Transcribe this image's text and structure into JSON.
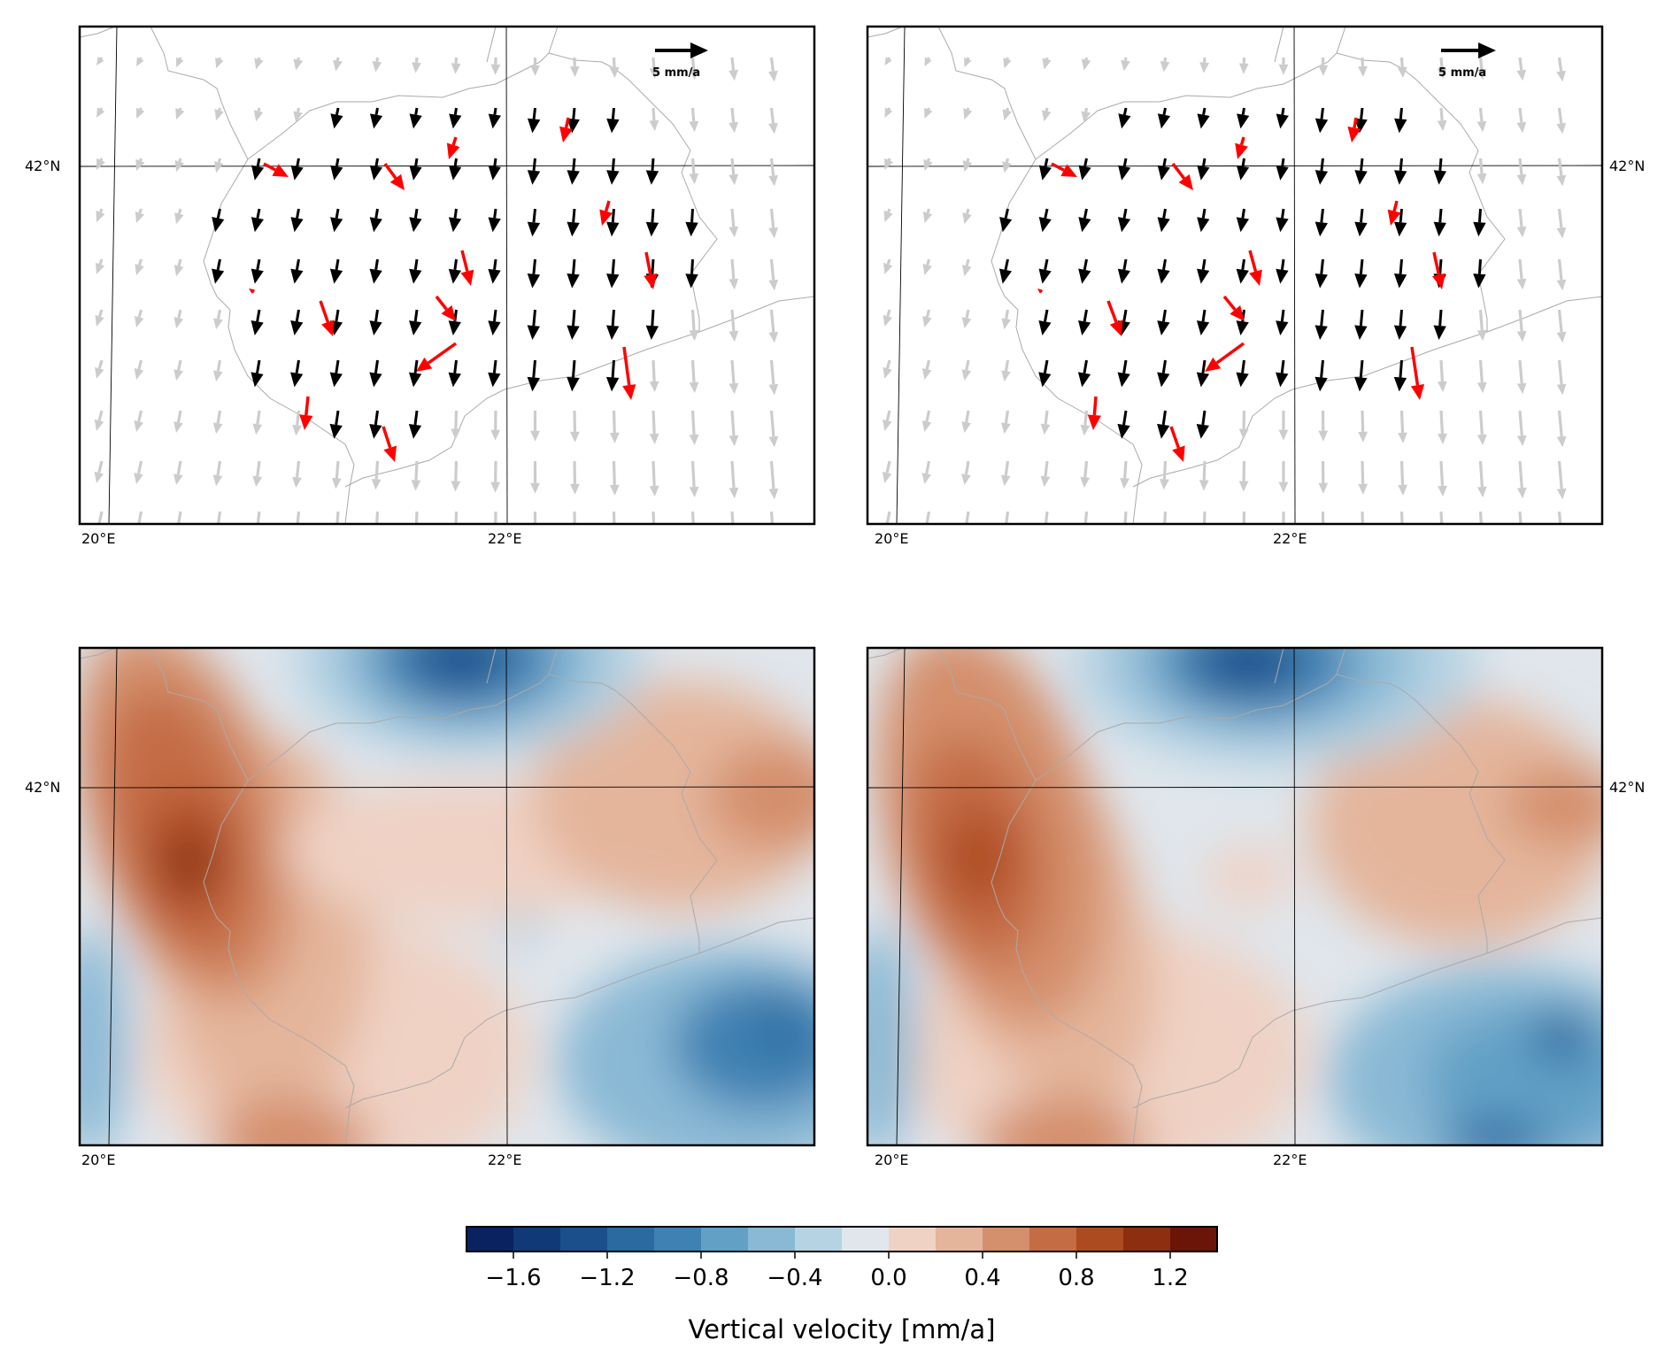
{
  "figure": {
    "panels": [
      {
        "id": "tl",
        "type": "velocity-vectors",
        "lat_label": "42°N",
        "lat_label_side": "left",
        "lon_labels": [
          "20°E",
          "22°E"
        ],
        "scale_label": "5 mm/a"
      },
      {
        "id": "tr",
        "type": "velocity-vectors",
        "lat_label": "42°N",
        "lat_label_side": "right",
        "lon_labels": [
          "20°E",
          "22°E"
        ],
        "scale_label": "5 mm/a"
      },
      {
        "id": "bl",
        "type": "vertical-velocity-contours",
        "lat_label": "42°N",
        "lat_label_side": "left",
        "lon_labels": [
          "20°E",
          "22°E"
        ]
      },
      {
        "id": "br",
        "type": "vertical-velocity-contours",
        "lat_label": "42°N",
        "lat_label_side": "right",
        "lon_labels": [
          "20°E",
          "22°E"
        ]
      }
    ],
    "colorbar": {
      "label": "Vertical velocity [mm/a]",
      "ticks": [
        "−1.6",
        "−1.2",
        "−0.8",
        "−0.4",
        "0.0",
        "0.4",
        "0.8",
        "1.2"
      ],
      "tick_values": [
        -1.6,
        -1.2,
        -0.8,
        -0.4,
        0.0,
        0.4,
        0.8,
        1.2
      ],
      "min": -1.8,
      "max": 1.4,
      "step": 0.2,
      "colors": [
        "#0a2260",
        "#0f3a77",
        "#1a4f8c",
        "#2a6aa0",
        "#3f81b2",
        "#62a0c6",
        "#8ab9d5",
        "#b6d3e3",
        "#e0e6ec",
        "#efd2c4",
        "#e4b59b",
        "#d48f6c",
        "#c46c44",
        "#ad4b20",
        "#8e2e10",
        "#6b1508"
      ]
    },
    "colors": {
      "vector_inside": "#000000",
      "vector_outside": "#cccccc",
      "vector_outlier": "#ff0000",
      "borders": "#aaaaaa",
      "gridlines": "#000000"
    }
  }
}
